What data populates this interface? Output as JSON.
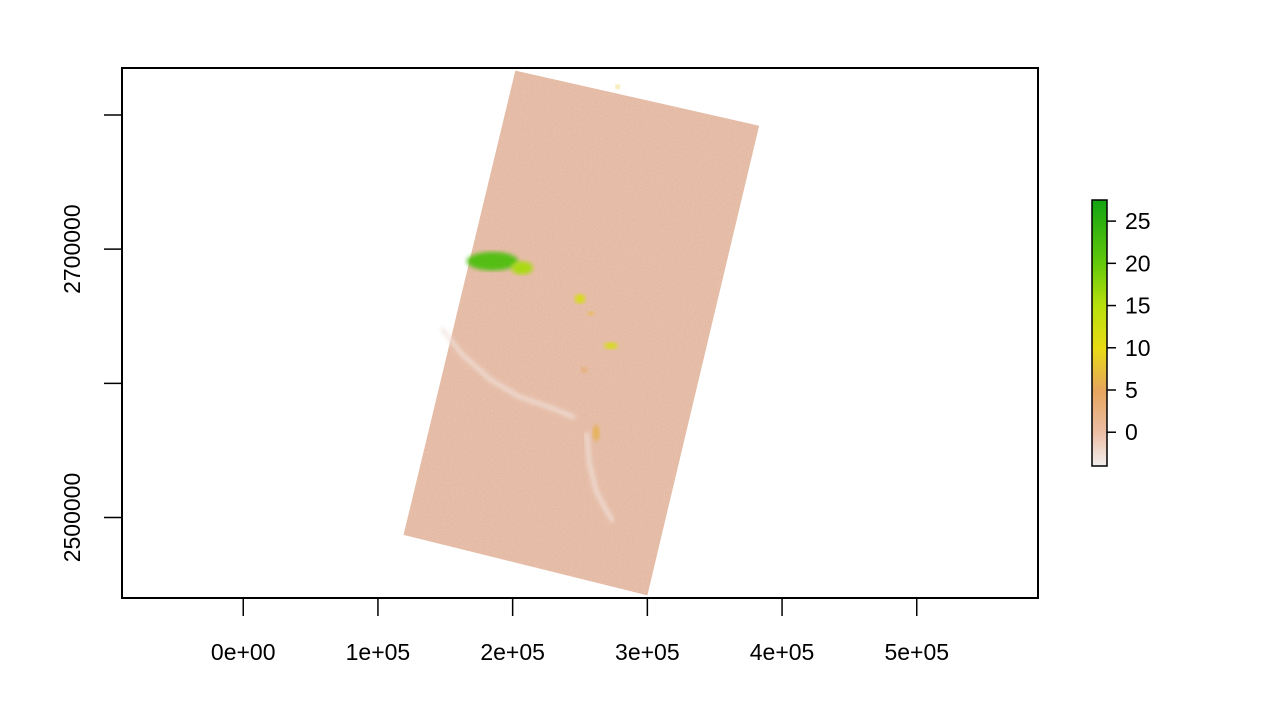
{
  "chart_data": {
    "type": "heatmap",
    "title": "",
    "xlabel": "",
    "ylabel": "",
    "xlim": [
      -90000,
      590000
    ],
    "ylim": [
      2440000,
      2835000
    ],
    "x_ticks": [
      {
        "value": 0,
        "label": "0e+00"
      },
      {
        "value": 100000,
        "label": "1e+05"
      },
      {
        "value": 200000,
        "label": "2e+05"
      },
      {
        "value": 300000,
        "label": "3e+05"
      },
      {
        "value": 400000,
        "label": "4e+05"
      },
      {
        "value": 500000,
        "label": "5e+05"
      }
    ],
    "y_ticks": [
      {
        "value": 2500000,
        "label": "2500000",
        "labeled": true
      },
      {
        "value": 2600000,
        "label": "",
        "labeled": false
      },
      {
        "value": 2700000,
        "label": "2700000",
        "labeled": true
      },
      {
        "value": 2800000,
        "label": "",
        "labeled": false
      }
    ],
    "raster_corners": [
      {
        "x": 202000,
        "y": 2833000
      },
      {
        "x": 383000,
        "y": 2792000
      },
      {
        "x": 300000,
        "y": 2442000
      },
      {
        "x": 119000,
        "y": 2487000
      }
    ],
    "background_value": 0,
    "patches": [
      {
        "x": 185000,
        "y": 2691000,
        "rx": 19000,
        "ry": 7000,
        "value": 22
      },
      {
        "x": 207000,
        "y": 2686000,
        "rx": 8000,
        "ry": 5000,
        "value": 16
      },
      {
        "x": 250000,
        "y": 2663000,
        "rx": 4000,
        "ry": 3500,
        "value": 12
      },
      {
        "x": 273000,
        "y": 2628000,
        "rx": 5000,
        "ry": 2500,
        "value": 12
      },
      {
        "x": 258000,
        "y": 2652000,
        "rx": 2500,
        "ry": 1500,
        "value": 7
      },
      {
        "x": 262000,
        "y": 2563000,
        "rx": 2500,
        "ry": 6000,
        "value": 6
      },
      {
        "x": 253000,
        "y": 2610000,
        "rx": 2500,
        "ry": 2000,
        "value": 4
      },
      {
        "x": 278000,
        "y": 2821000,
        "rx": 1500,
        "ry": 1500,
        "value": 8
      }
    ],
    "low_features": [
      {
        "points": [
          [
            148000,
            2640000
          ],
          [
            162000,
            2622000
          ],
          [
            183000,
            2603000
          ],
          [
            205000,
            2590000
          ],
          [
            228000,
            2582000
          ],
          [
            245000,
            2575000
          ]
        ],
        "value": -3
      },
      {
        "points": [
          [
            255000,
            2562000
          ],
          [
            257000,
            2540000
          ],
          [
            262000,
            2520000
          ],
          [
            268000,
            2508000
          ],
          [
            274000,
            2498000
          ]
        ],
        "value": -3
      }
    ],
    "legend": {
      "position": "right",
      "min": -4,
      "max": 27.5,
      "ticks": [
        {
          "value": 0,
          "label": "0"
        },
        {
          "value": 5,
          "label": "5"
        },
        {
          "value": 10,
          "label": "10"
        },
        {
          "value": 15,
          "label": "15"
        },
        {
          "value": 20,
          "label": "20"
        },
        {
          "value": 25,
          "label": "25"
        }
      ]
    },
    "palette": {
      "stops": [
        {
          "value": -4,
          "color": "#f2eeee"
        },
        {
          "value": 0,
          "color": "#ecbda4"
        },
        {
          "value": 5,
          "color": "#e6a55c"
        },
        {
          "value": 10,
          "color": "#e8dc14"
        },
        {
          "value": 15,
          "color": "#b8e00c"
        },
        {
          "value": 20,
          "color": "#63c90a"
        },
        {
          "value": 27.5,
          "color": "#12a313"
        }
      ]
    },
    "grid": false
  }
}
